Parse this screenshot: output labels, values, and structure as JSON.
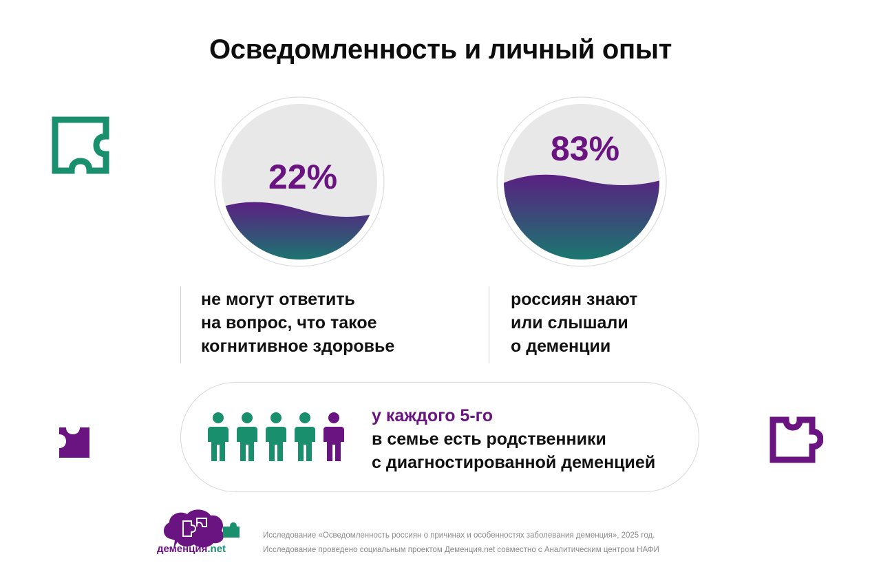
{
  "title": "Осведомленность и личный опыт",
  "colors": {
    "purple": "#6a1482",
    "green": "#1a8f6e",
    "wave_top": "#5a2082",
    "wave_bottom": "#14806e",
    "circle_fill": "#e8e8e8"
  },
  "stats": [
    {
      "value": "22%",
      "fill_fraction": 0.22,
      "lines": [
        "не могут ответить",
        "на вопрос, что такое",
        "когнитивное здоровье"
      ]
    },
    {
      "value": "83%",
      "fill_fraction": 0.83,
      "lines": [
        "россиян знают",
        "или слышали",
        "о деменции"
      ]
    }
  ],
  "callout": {
    "highlight": "у каждого 5-го",
    "line2": "в семье есть родственники",
    "line3": "с диагностированной деменцией",
    "people_total": 5,
    "people_highlighted": 1
  },
  "footer": {
    "line1": "Исследование «Осведомленность россиян о причинах и особенностях заболевания деменция», 2025 год.",
    "line2": "Исследование проведено социальным проектом Деменция.net совместно с Аналитическим центром НАФИ"
  },
  "logo": {
    "name": "деменция",
    "suffix": ".net"
  },
  "icons": [
    "puzzle-outline-icon",
    "puzzle-piece-icon",
    "puzzle-outline-icon",
    "person-icon",
    "brain-puzzle-logo-icon"
  ]
}
